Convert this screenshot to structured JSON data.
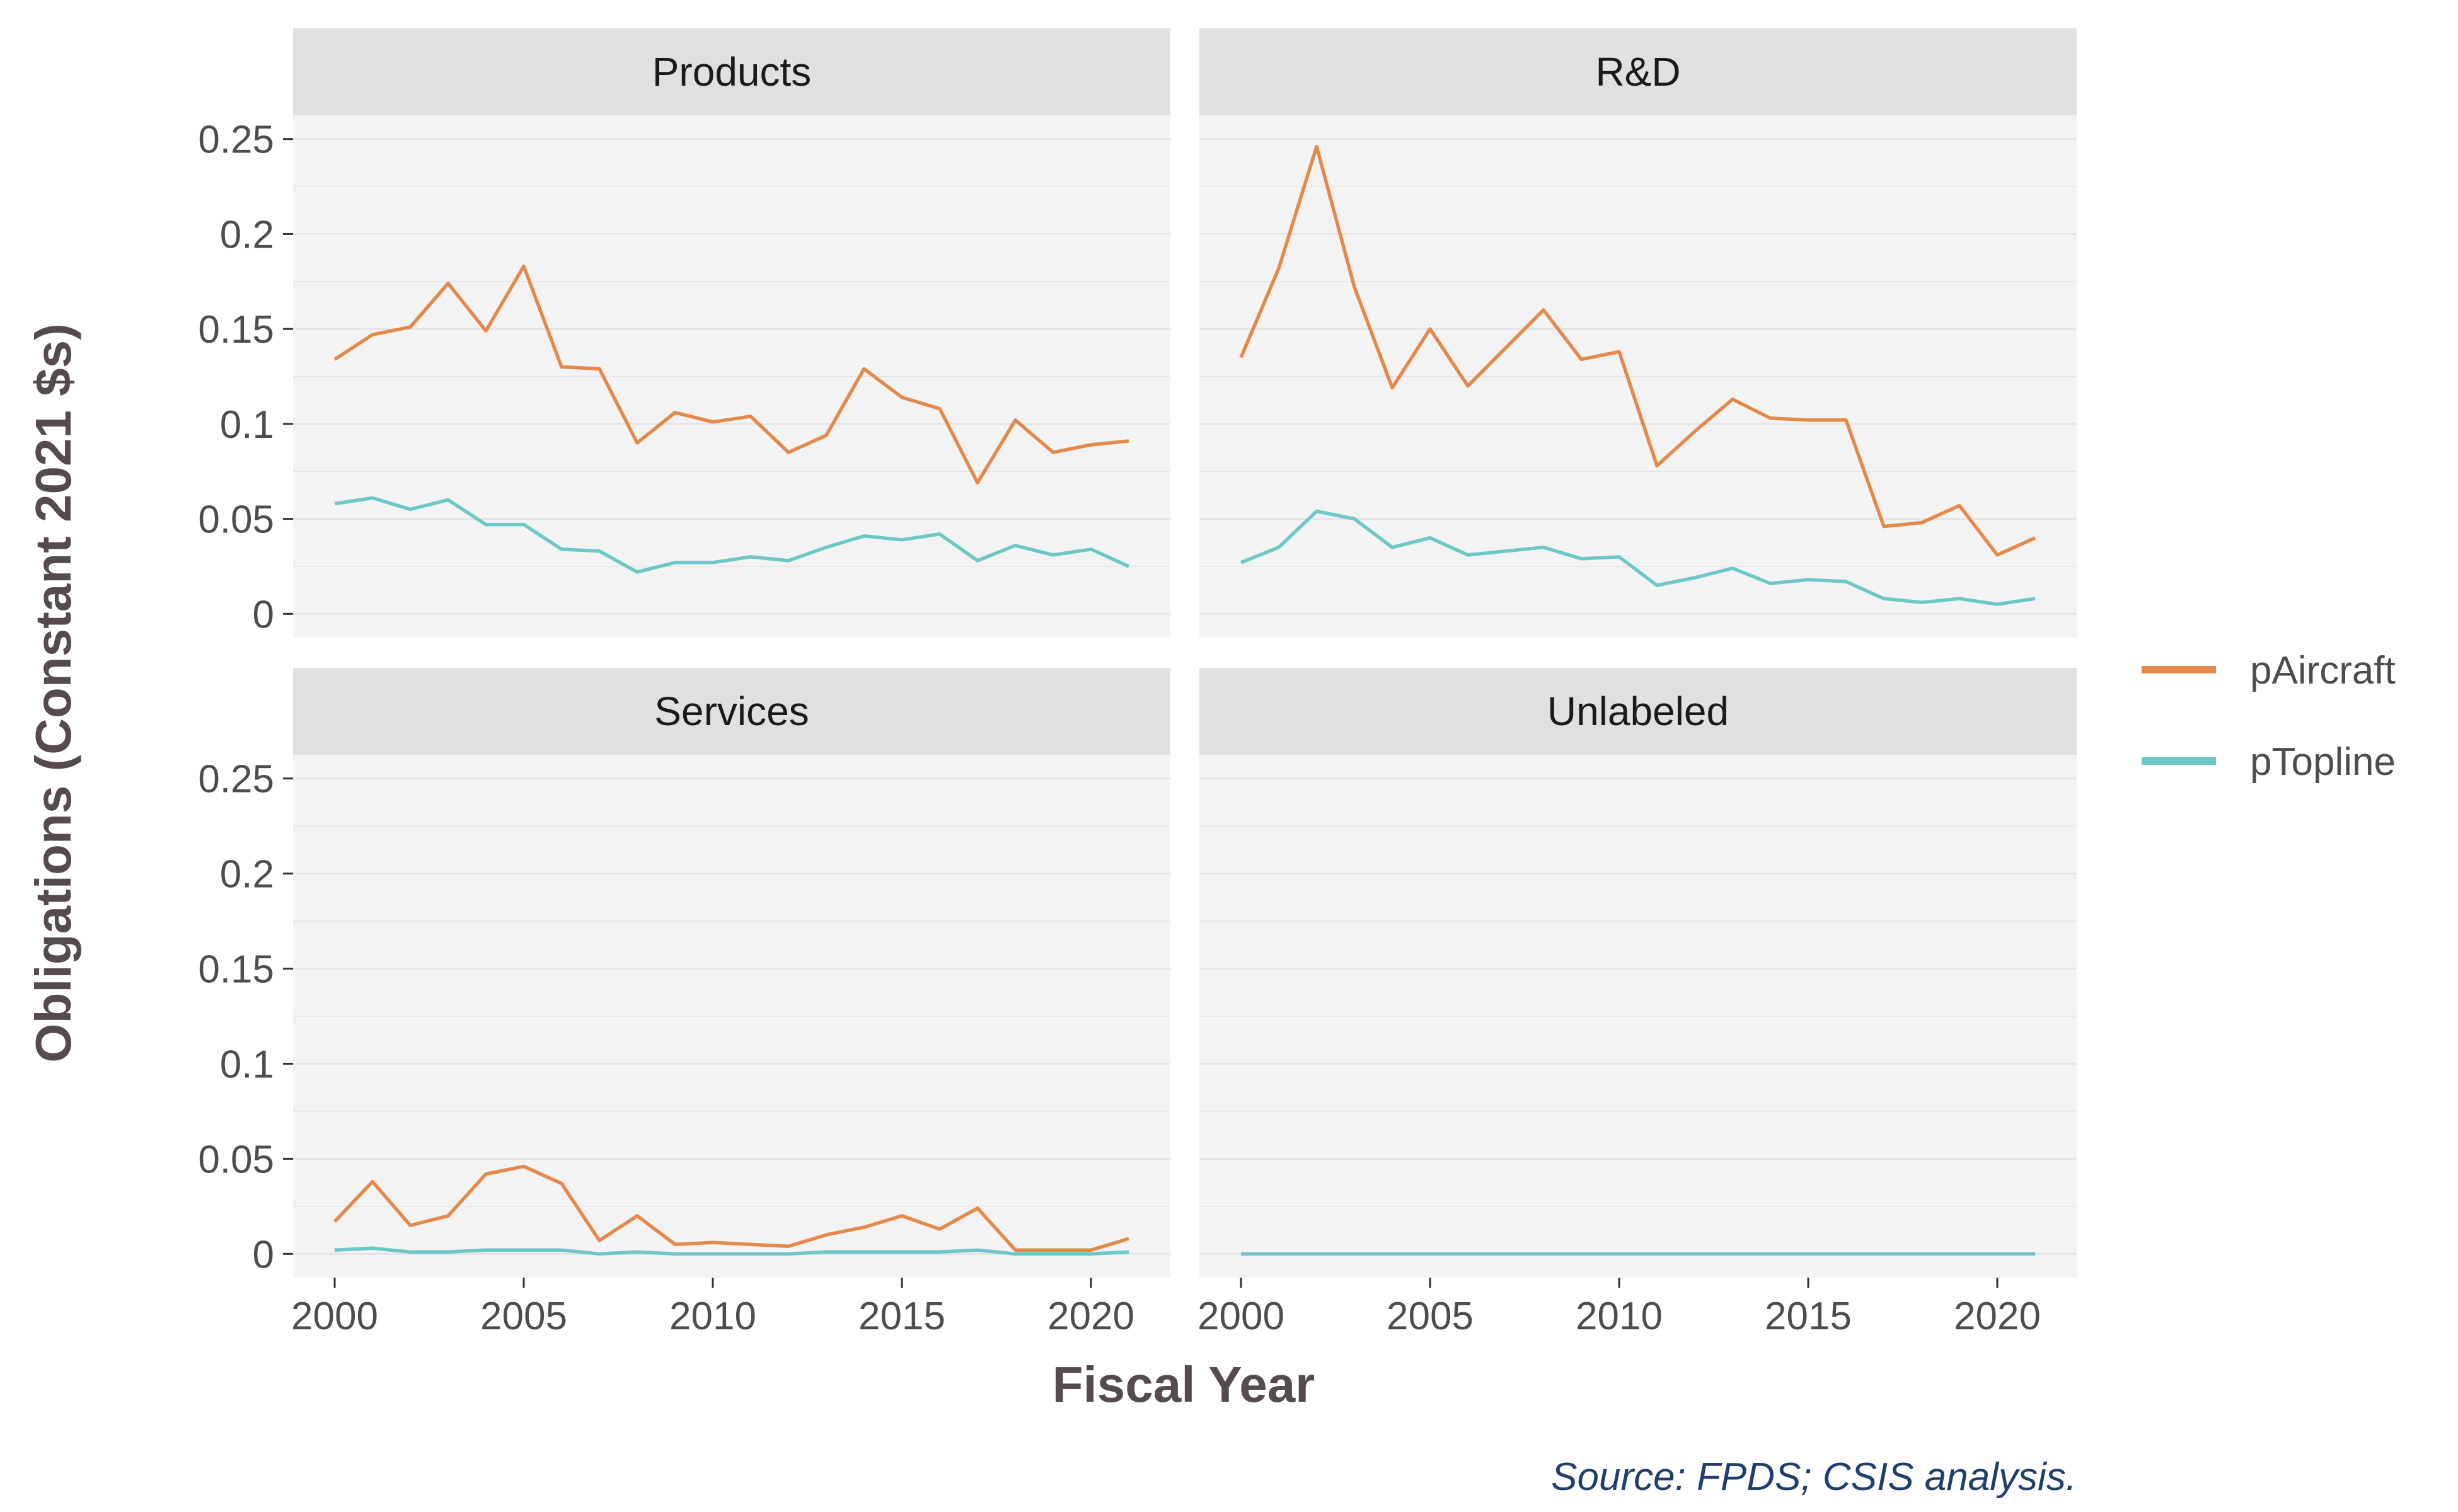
{
  "chart_data": {
    "type": "line",
    "facet_layout": "2x2",
    "xlabel": "Fiscal Year",
    "ylabel": "Obligations (Constant 2021 $s)",
    "caption": "Source: FPDS; CSIS analysis.",
    "x": [
      2000,
      2001,
      2002,
      2003,
      2004,
      2005,
      2006,
      2007,
      2008,
      2009,
      2010,
      2011,
      2012,
      2013,
      2014,
      2015,
      2016,
      2017,
      2018,
      2019,
      2020,
      2021
    ],
    "xlim": [
      1998.9,
      2022.1
    ],
    "ylim": [
      -0.0125,
      0.2625
    ],
    "x_ticks": [
      2000,
      2005,
      2010,
      2015,
      2020
    ],
    "x_tick_labels": [
      "2000",
      "2005",
      "2010",
      "2015",
      "2020"
    ],
    "y_ticks": [
      0,
      0.05,
      0.1,
      0.15,
      0.2,
      0.25
    ],
    "y_tick_labels": [
      "0",
      "0.05",
      "0.1",
      "0.15",
      "0.2",
      "0.25"
    ],
    "grid": true,
    "legend": {
      "placement": "right",
      "entries": [
        {
          "name": "pAircraft",
          "color": "#E5894B"
        },
        {
          "name": "pTopline",
          "color": "#6CC7C7"
        }
      ]
    },
    "colors": {
      "panel_background": "#F3F3F3",
      "strip_background": "#E0E0E0",
      "grid": "#E4E4E4",
      "pAircraft": "#E5894B",
      "pTopline": "#6CC7C7"
    },
    "facets": [
      {
        "title": "Products",
        "series": [
          {
            "name": "pAircraft",
            "values": [
              0.134,
              0.147,
              0.151,
              0.174,
              0.149,
              0.183,
              0.13,
              0.129,
              0.09,
              0.106,
              0.101,
              0.104,
              0.085,
              0.094,
              0.129,
              0.114,
              0.108,
              0.069,
              0.102,
              0.085,
              0.089,
              0.091
            ]
          },
          {
            "name": "pTopline",
            "values": [
              0.058,
              0.061,
              0.055,
              0.06,
              0.047,
              0.047,
              0.034,
              0.033,
              0.022,
              0.027,
              0.027,
              0.03,
              0.028,
              0.035,
              0.041,
              0.039,
              0.042,
              0.028,
              0.036,
              0.031,
              0.034,
              0.025
            ]
          }
        ]
      },
      {
        "title": "R&D",
        "series": [
          {
            "name": "pAircraft",
            "values": [
              0.135,
              0.182,
              0.246,
              0.172,
              0.119,
              0.15,
              0.12,
              0.14,
              0.16,
              0.134,
              0.138,
              0.078,
              0.096,
              0.113,
              0.103,
              0.102,
              0.102,
              0.046,
              0.048,
              0.057,
              0.031,
              0.04
            ]
          },
          {
            "name": "pTopline",
            "values": [
              0.027,
              0.035,
              0.054,
              0.05,
              0.035,
              0.04,
              0.031,
              0.033,
              0.035,
              0.029,
              0.03,
              0.015,
              0.019,
              0.024,
              0.016,
              0.018,
              0.017,
              0.008,
              0.006,
              0.008,
              0.005,
              0.008
            ]
          }
        ]
      },
      {
        "title": "Services",
        "series": [
          {
            "name": "pAircraft",
            "values": [
              0.017,
              0.038,
              0.015,
              0.02,
              0.042,
              0.046,
              0.037,
              0.007,
              0.02,
              0.005,
              0.006,
              0.005,
              0.004,
              0.01,
              0.014,
              0.02,
              0.013,
              0.024,
              0.002,
              0.002,
              0.002,
              0.008
            ]
          },
          {
            "name": "pTopline",
            "values": [
              0.002,
              0.003,
              0.001,
              0.001,
              0.002,
              0.002,
              0.002,
              0.0,
              0.001,
              0.0,
              0.0,
              0.0,
              0.0,
              0.001,
              0.001,
              0.001,
              0.001,
              0.002,
              0.0,
              0.0,
              0.0,
              0.001
            ]
          }
        ]
      },
      {
        "title": "Unlabeled",
        "series": [
          {
            "name": "pAircraft",
            "values": [
              0,
              0,
              0,
              0,
              0,
              0,
              0,
              0,
              0,
              0,
              0,
              0,
              0,
              0,
              0,
              0,
              0,
              0,
              0,
              0,
              0,
              0
            ]
          },
          {
            "name": "pTopline",
            "values": [
              0,
              0,
              0,
              0,
              0,
              0,
              0,
              0,
              0,
              0,
              0,
              0,
              0,
              0,
              0,
              0,
              0,
              0,
              0,
              0,
              0,
              0
            ]
          }
        ]
      }
    ]
  }
}
